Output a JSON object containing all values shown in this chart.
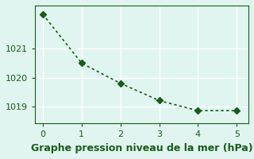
{
  "x": [
    0,
    1,
    2,
    3,
    4,
    5
  ],
  "y": [
    1022.2,
    1020.5,
    1019.8,
    1019.2,
    1018.85,
    1018.85
  ],
  "line_color": "#1a5c1a",
  "marker": "D",
  "marker_size": 4,
  "xlabel": "Graphe pression niveau de la mer (hPa)",
  "xlim": [
    -0.2,
    5.3
  ],
  "ylim": [
    1018.4,
    1022.5
  ],
  "yticks": [
    1019,
    1020,
    1021
  ],
  "xticks": [
    0,
    1,
    2,
    3,
    4,
    5
  ],
  "background_color": "#e0f5f0",
  "grid_color": "#ffffff",
  "xlabel_fontsize": 9,
  "tick_fontsize": 8
}
